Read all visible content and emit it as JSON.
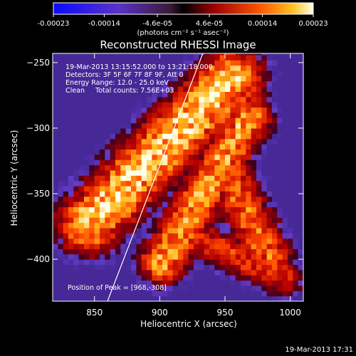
{
  "chart_data": {
    "type": "heatmap",
    "title": "Reconstructed RHESSI Image",
    "xlabel": "Heliocentric X (arcsec)",
    "ylabel": "Heliocentric Y (arcsec)",
    "xlim": [
      818,
      1010
    ],
    "ylim": [
      -432,
      -243
    ],
    "x_ticks": [
      850,
      900,
      950,
      1000
    ],
    "x_tick_labels": [
      "850",
      "900",
      "950",
      "1000"
    ],
    "y_ticks": [
      -250,
      -300,
      -350,
      -400
    ],
    "y_tick_labels": [
      "−250",
      "−300",
      "−350",
      "−400"
    ],
    "colorbar": {
      "ticks": [
        -0.00023,
        -0.00014,
        -4.6e-05,
        4.6e-05,
        0.00014,
        0.00023
      ],
      "tick_labels": [
        "-0.00023",
        "-0.00014",
        "-4.6e-05",
        "4.6e-05",
        "0.00014",
        "0.00023"
      ],
      "unit_label": "(photons cm⁻² s⁻¹ asec⁻²)"
    },
    "annotations": [
      "19-Mar-2013 13:15:52.000 to 13:21:18.000",
      "Detectors: 3F 5F 6F 7F 8F 9F, Att 0",
      "Energy Range: 12.0 - 25.0 keV",
      "Clean     Total counts: 7.56E+03"
    ],
    "peak_label": "Position of Peak = [968,-308]",
    "limb_line": [
      [
        860,
        -432
      ],
      [
        933,
        -243
      ]
    ],
    "bands": [
      {
        "start": [
          846,
          -372
        ],
        "end": [
          955,
          -262
        ],
        "width": 16,
        "value": 1.0
      },
      {
        "start": [
          902,
          -402
        ],
        "end": [
          968,
          -292
        ],
        "width": 12,
        "value": 0.85
      },
      {
        "start": [
          955,
          -340
        ],
        "end": [
          985,
          -400
        ],
        "width": 12,
        "value": 0.7
      },
      {
        "start": [
          925,
          -382
        ],
        "end": [
          995,
          -414
        ],
        "width": 10,
        "value": 0.55
      }
    ]
  },
  "footer_timestamp": "19-Mar-2013 17:31"
}
